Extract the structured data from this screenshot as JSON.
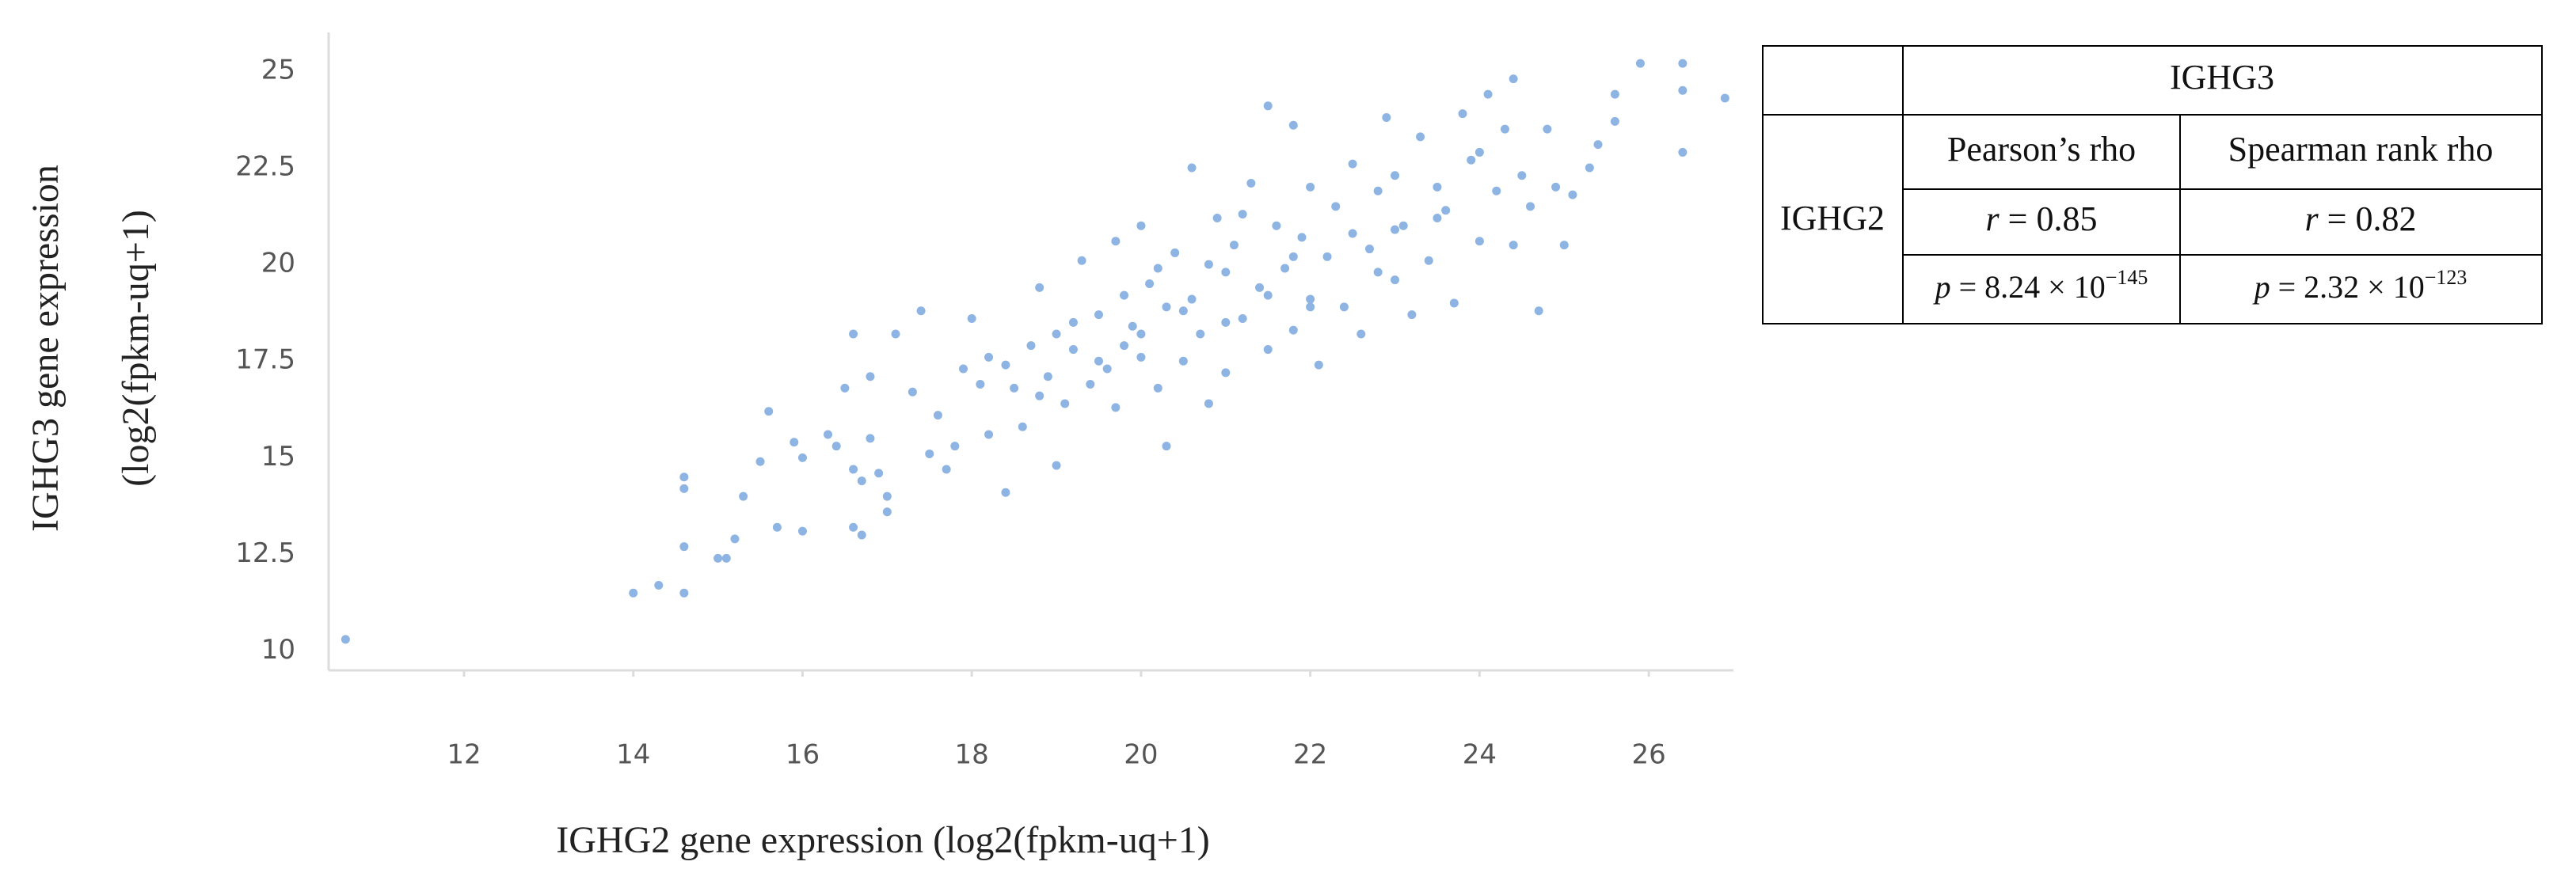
{
  "chart_data": {
    "type": "scatter",
    "ylabel": [
      "IGHG3 gene expression",
      "(log2(fpkm-uq+1)"
    ],
    "xlabel": "IGHG2 gene expression (log2(fpkm-uq+1)",
    "color": "#8db4e2",
    "xlim": [
      10.4,
      27.0
    ],
    "ylim": [
      9.5,
      26.0
    ],
    "xticks": [
      12,
      14,
      16,
      18,
      20,
      22,
      24,
      26
    ],
    "yticks": [
      10,
      12.5,
      15,
      17.5,
      20,
      22.5,
      25
    ],
    "x": [
      10.6,
      14,
      14.3,
      14.6,
      14.6,
      14.6,
      14.6,
      15,
      15.1,
      15.2,
      15.3,
      15.5,
      15.6,
      15.7,
      15.9,
      16,
      16,
      16.3,
      16.4,
      16.5,
      16.6,
      16.6,
      16.6,
      16.7,
      16.7,
      16.8,
      16.8,
      16.9,
      17,
      17,
      17.1,
      17.3,
      17.4,
      17.5,
      17.6,
      17.7,
      17.8,
      17.9,
      18,
      18.1,
      18.2,
      18.2,
      18.4,
      18.5,
      18.6,
      18.7,
      18.8,
      18.9,
      19,
      19,
      19.1,
      19.2,
      19.3,
      19.4,
      19.5,
      19.6,
      19.7,
      19.7,
      19.8,
      19.9,
      20,
      20,
      20.1,
      20.2,
      20.3,
      20.3,
      20.4,
      20.5,
      20.6,
      20.6,
      20.7,
      20.8,
      20.9,
      21,
      21,
      21.1,
      21.2,
      21.3,
      21.4,
      21.5,
      21.5,
      21.6,
      21.7,
      21.8,
      21.8,
      21.9,
      22,
      22,
      22.1,
      22.2,
      22.3,
      22.4,
      22.5,
      22.6,
      22.7,
      22.8,
      22.9,
      23,
      23,
      23.1,
      23.2,
      23.3,
      23.4,
      23.5,
      23.6,
      23.7,
      23.8,
      23.9,
      24,
      24.1,
      24.2,
      24.3,
      24.4,
      24.4,
      24.5,
      24.6,
      24.7,
      24.8,
      24.9,
      25,
      25.1,
      25.3,
      25.4,
      25.6,
      25.6,
      25.9,
      26.4,
      26.4,
      26.4,
      26.9,
      20.5,
      19.8,
      21,
      22.5,
      21.5,
      20.2,
      23.5,
      22.8,
      19.5,
      18.8,
      20.8,
      21.8,
      23,
      24,
      20,
      22,
      21.2,
      19.2,
      18.4
    ],
    "y": [
      10.3,
      11.5,
      11.7,
      11.5,
      14.5,
      14.2,
      12.7,
      12.4,
      12.4,
      12.9,
      14,
      14.9,
      16.2,
      13.2,
      15.4,
      13.1,
      15,
      15.6,
      15.3,
      16.8,
      18.2,
      14.7,
      13.2,
      13,
      14.4,
      17.1,
      15.5,
      14.6,
      13.6,
      14,
      18.2,
      16.7,
      18.8,
      15.1,
      16.1,
      14.7,
      15.3,
      17.3,
      18.6,
      16.9,
      17.6,
      15.6,
      14.1,
      16.8,
      15.8,
      17.9,
      19.4,
      17.1,
      18.2,
      14.8,
      16.4,
      17.8,
      20.1,
      16.9,
      18.7,
      17.3,
      20.6,
      16.3,
      19.2,
      18.4,
      17.6,
      21,
      19.5,
      16.8,
      18.9,
      15.3,
      20.3,
      17.5,
      22.5,
      19.1,
      18.2,
      16.4,
      21.2,
      19.8,
      17.2,
      20.5,
      18.6,
      22.1,
      19.4,
      24.1,
      17.8,
      21,
      19.9,
      23.6,
      18.3,
      20.7,
      19.1,
      22,
      17.4,
      20.2,
      21.5,
      18.9,
      22.6,
      18.2,
      20.4,
      21.9,
      23.8,
      19.6,
      22.3,
      21,
      18.7,
      23.3,
      20.1,
      22,
      21.4,
      19,
      23.9,
      22.7,
      20.6,
      24.4,
      21.9,
      23.5,
      24.8,
      20.5,
      22.3,
      21.5,
      18.8,
      23.5,
      22,
      20.5,
      21.8,
      22.5,
      23.1,
      24.4,
      23.7,
      25.2,
      25.2,
      24.5,
      22.9,
      24.3,
      18.8,
      17.9,
      18.5,
      20.8,
      19.2,
      19.9,
      21.2,
      19.8,
      17.5,
      16.6,
      20,
      20.2,
      20.9,
      22.9,
      18.2,
      18.9,
      21.3,
      18.5,
      17.4
    ]
  },
  "table": {
    "column_header": "IGHG3",
    "row_header": "IGHG2",
    "columns": [
      "Pearson’s rho",
      "Spearman rank rho"
    ],
    "r": [
      {
        "var": "r",
        "rest": " = 0.85"
      },
      {
        "var": "r",
        "rest": " = 0.82"
      }
    ],
    "p": [
      {
        "var": "p",
        "rest": " = 8.24 × 10",
        "exp": "−145"
      },
      {
        "var": "p",
        "rest": " = 2.32 × 10",
        "exp": "−123"
      }
    ]
  }
}
